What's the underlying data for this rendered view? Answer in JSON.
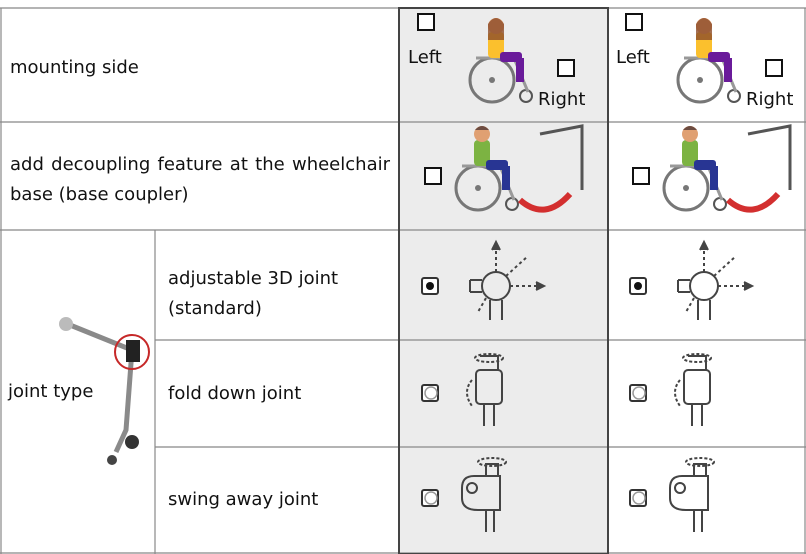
{
  "mounting_side": {
    "label": "mounting side",
    "columns": [
      {
        "left": "Left",
        "right": "Right"
      },
      {
        "left": "Left",
        "right": "Right"
      }
    ]
  },
  "base_coupler": {
    "label": "add decoupling feature at the wheelchair base (base coupler)"
  },
  "joint_type": {
    "label": "joint type",
    "options": [
      "adjustable 3D joint (standard)",
      "fold down joint",
      "swing away joint"
    ]
  }
}
